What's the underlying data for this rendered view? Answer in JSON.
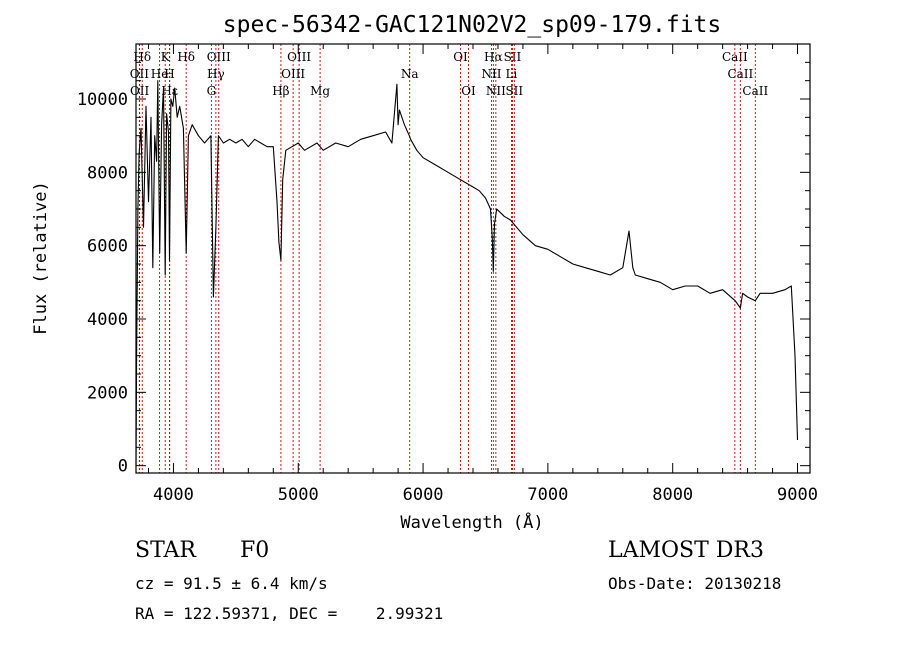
{
  "chart_data": {
    "type": "line",
    "title": "spec-56342-GAC121N02V2_sp09-179.fits",
    "xlabel": "Wavelength (Å)",
    "ylabel": "Flux (relative)",
    "xlim": [
      3700,
      9100
    ],
    "ylim": [
      -200,
      11500
    ],
    "xticks": [
      4000,
      5000,
      6000,
      7000,
      8000,
      9000
    ],
    "yticks": [
      0,
      2000,
      4000,
      6000,
      8000,
      10000
    ],
    "series": [
      {
        "name": "spectrum",
        "x": [
          3700,
          3705,
          3715,
          3725,
          3740,
          3760,
          3780,
          3800,
          3820,
          3835,
          3850,
          3865,
          3875,
          3890,
          3905,
          3920,
          3934,
          3945,
          3960,
          3968,
          3980,
          3995,
          4010,
          4030,
          4050,
          4080,
          4102,
          4120,
          4150,
          4200,
          4250,
          4300,
          4320,
          4340,
          4360,
          4400,
          4450,
          4500,
          4550,
          4600,
          4650,
          4700,
          4750,
          4800,
          4830,
          4845,
          4861,
          4875,
          4900,
          4950,
          5000,
          5050,
          5100,
          5150,
          5200,
          5300,
          5400,
          5500,
          5600,
          5700,
          5750,
          5790,
          5800,
          5810,
          5850,
          5890,
          5900,
          5950,
          6000,
          6100,
          6200,
          6300,
          6400,
          6450,
          6500,
          6540,
          6555,
          6563,
          6572,
          6590,
          6650,
          6700,
          6800,
          6900,
          7000,
          7100,
          7200,
          7300,
          7400,
          7500,
          7600,
          7650,
          7680,
          7700,
          7800,
          7900,
          8000,
          8100,
          8200,
          8300,
          8400,
          8500,
          8542,
          8560,
          8600,
          8662,
          8700,
          8800,
          8900,
          8950,
          8980,
          9000
        ],
        "values": [
          0,
          3000,
          7000,
          8500,
          9200,
          6500,
          9800,
          7200,
          9500,
          5400,
          9000,
          8300,
          10500,
          5800,
          9300,
          10300,
          5200,
          9600,
          9100,
          5600,
          10000,
          9800,
          10300,
          9500,
          9800,
          9200,
          5800,
          9000,
          9300,
          9000,
          8800,
          9000,
          4600,
          6500,
          9000,
          8800,
          8900,
          8800,
          8900,
          8700,
          8900,
          8800,
          8700,
          8700,
          7200,
          6100,
          5600,
          7800,
          8600,
          8700,
          8800,
          8600,
          8700,
          8800,
          8600,
          8800,
          8700,
          8900,
          9000,
          9100,
          8800,
          10400,
          9300,
          9700,
          9300,
          9000,
          8900,
          8600,
          8400,
          8200,
          8000,
          7800,
          7600,
          7500,
          7300,
          7000,
          6200,
          5300,
          6600,
          7000,
          6800,
          6700,
          6300,
          6000,
          5900,
          5700,
          5500,
          5400,
          5300,
          5200,
          5400,
          6400,
          5400,
          5200,
          5100,
          5000,
          4800,
          4900,
          4900,
          4700,
          4800,
          4500,
          4300,
          4700,
          4600,
          4500,
          4700,
          4700,
          4800,
          4900,
          3000,
          700
        ]
      }
    ],
    "spectral_lines": [
      {
        "name": "Hδ",
        "wavelength": 3750,
        "row": 0
      },
      {
        "name": "K",
        "wavelength": 3934,
        "row": 0
      },
      {
        "name": "Hδ",
        "wavelength": 4102,
        "row": 0
      },
      {
        "name": "OIII",
        "wavelength": 4363,
        "row": 0
      },
      {
        "name": "OIII",
        "wavelength": 5007,
        "row": 0
      },
      {
        "name": "OI",
        "wavelength": 6300,
        "row": 0
      },
      {
        "name": "Hα",
        "wavelength": 6563,
        "row": 0
      },
      {
        "name": "SII",
        "wavelength": 6716,
        "row": 0
      },
      {
        "name": "CaII",
        "wavelength": 8498,
        "row": 0
      },
      {
        "name": "OII",
        "wavelength": 3727,
        "row": 1
      },
      {
        "name": "He",
        "wavelength": 3889,
        "row": 1
      },
      {
        "name": "H",
        "wavelength": 3968,
        "row": 1
      },
      {
        "name": "Hγ",
        "wavelength": 4340,
        "row": 1
      },
      {
        "name": "OIII",
        "wavelength": 4959,
        "row": 1
      },
      {
        "name": "Na",
        "wavelength": 5893,
        "row": 1
      },
      {
        "name": "NII",
        "wavelength": 6548,
        "row": 1
      },
      {
        "name": "Li",
        "wavelength": 6708,
        "row": 1
      },
      {
        "name": "CaII",
        "wavelength": 8542,
        "row": 1
      },
      {
        "name": "OII",
        "wavelength": 3729,
        "row": 2
      },
      {
        "name": "Hε",
        "wavelength": 3970,
        "row": 2
      },
      {
        "name": "G",
        "wavelength": 4304,
        "row": 2
      },
      {
        "name": "Hβ",
        "wavelength": 4861,
        "row": 2
      },
      {
        "name": "Mg",
        "wavelength": 5175,
        "row": 2
      },
      {
        "name": "OI",
        "wavelength": 6364,
        "row": 2
      },
      {
        "name": "NII",
        "wavelength": 6583,
        "row": 2
      },
      {
        "name": "SII",
        "wavelength": 6731,
        "row": 2
      },
      {
        "name": "CaII",
        "wavelength": 8662,
        "row": 2
      }
    ]
  },
  "info": {
    "class": "STAR",
    "subclass": "F0",
    "survey": "LAMOST DR3",
    "cz": "cz = 91.5 ± 6.4 km/s",
    "obs_date": "Obs-Date: 20130218",
    "radec": "RA = 122.59371, DEC =    2.99321"
  },
  "colors": {
    "line_marker": "#cc0000",
    "spectrum": "#000000"
  }
}
